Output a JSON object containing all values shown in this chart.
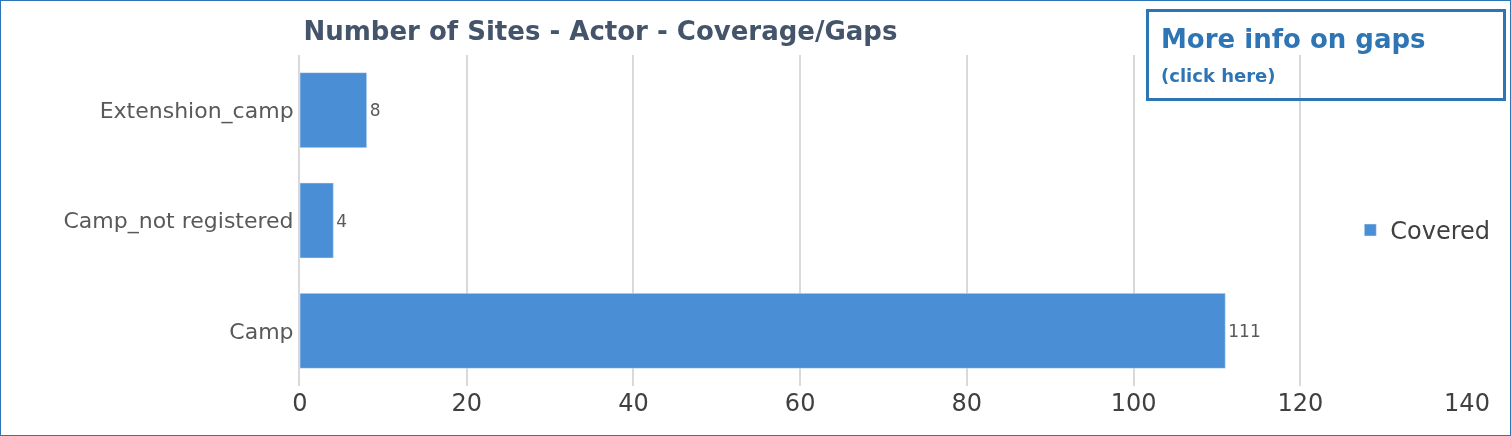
{
  "chart_data": {
    "type": "bar",
    "orientation": "horizontal",
    "title": "Number of Sites - Actor - Coverage/Gaps",
    "categories": [
      "Extenshion_camp",
      "Camp_not registered",
      "Camp"
    ],
    "series": [
      {
        "name": "Covered",
        "color": "#4a8fd6",
        "values": [
          8,
          4,
          111
        ]
      }
    ],
    "xlim": [
      0,
      140
    ],
    "xticks": [
      0,
      20,
      40,
      60,
      80,
      100,
      120,
      140
    ],
    "grid": "x",
    "legend": "right",
    "data_labels": true,
    "annotations": [
      "More info on gaps",
      "(click here)"
    ]
  }
}
